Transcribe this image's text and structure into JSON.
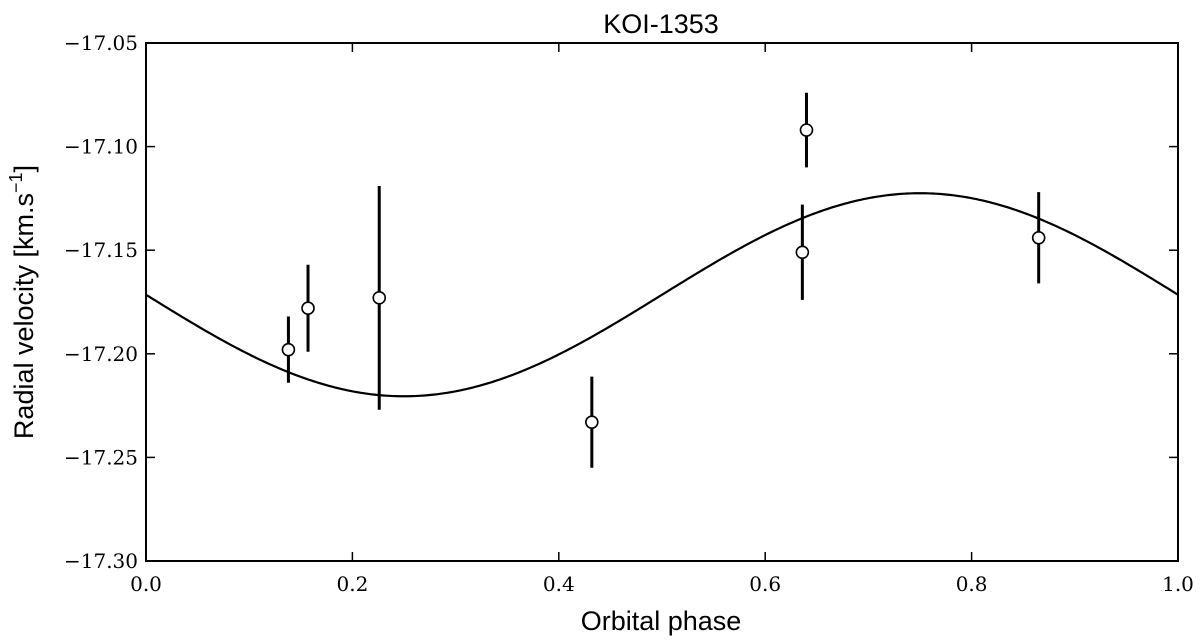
{
  "chart_data": {
    "type": "scatter",
    "title": "KOI-1353",
    "xlabel": "Orbital phase",
    "ylabel_main": "Radial velocity [km.s",
    "ylabel_sup": "−1",
    "ylabel_close": "]",
    "xlim": [
      0.0,
      1.0
    ],
    "ylim": [
      -17.3,
      -17.05
    ],
    "xticks": [
      0.0,
      0.2,
      0.4,
      0.6,
      0.8,
      1.0
    ],
    "xtick_labels": [
      "0.0",
      "0.2",
      "0.4",
      "0.6",
      "0.8",
      "1.0"
    ],
    "yticks": [
      -17.3,
      -17.25,
      -17.2,
      -17.15,
      -17.1,
      -17.05
    ],
    "ytick_labels": [
      "−17.30",
      "−17.25",
      "−17.20",
      "−17.15",
      "−17.10",
      "−17.05"
    ],
    "grid": false,
    "legend": "none",
    "series": [
      {
        "kind": "points_with_errorbars",
        "points": [
          {
            "x": 0.138,
            "y": -17.198,
            "yerr": 0.016
          },
          {
            "x": 0.157,
            "y": -17.178,
            "yerr": 0.021
          },
          {
            "x": 0.226,
            "y": -17.173,
            "yerr": 0.054
          },
          {
            "x": 0.432,
            "y": -17.233,
            "yerr": 0.022
          },
          {
            "x": 0.636,
            "y": -17.151,
            "yerr": 0.023
          },
          {
            "x": 0.64,
            "y": -17.092,
            "yerr": 0.018
          },
          {
            "x": 0.865,
            "y": -17.144,
            "yerr": 0.022
          }
        ]
      },
      {
        "kind": "model_curve",
        "function": "sinusoid",
        "mean": -17.1715,
        "amplitude": 0.049,
        "minimum_phase": 0.25
      }
    ]
  }
}
